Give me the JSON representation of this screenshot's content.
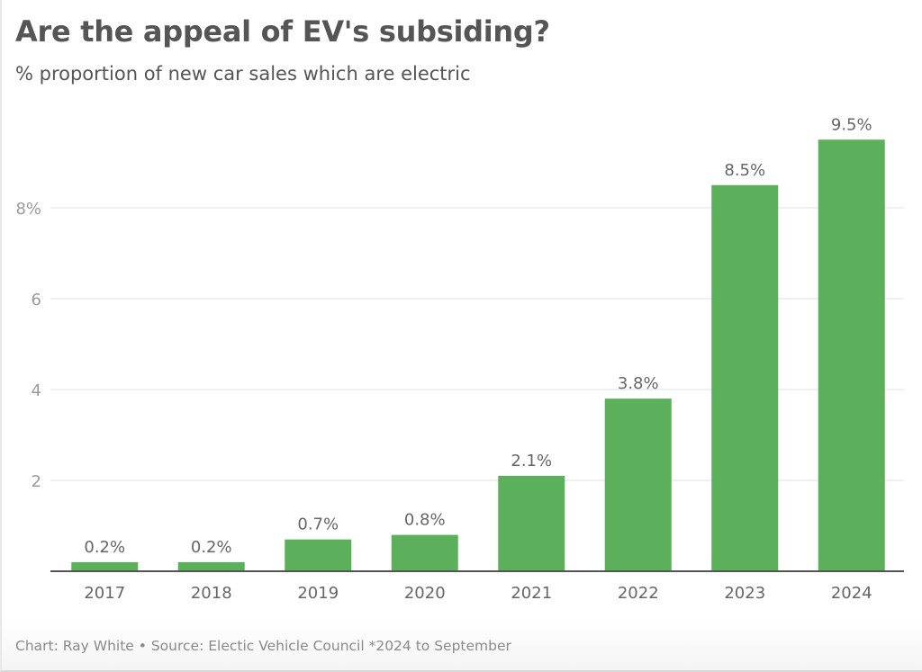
{
  "chart_data": {
    "type": "bar",
    "title": "Are the appeal of EV's subsiding?",
    "subtitle": "% proportion of new car sales which are electric",
    "categories": [
      "2017",
      "2018",
      "2019",
      "2020",
      "2021",
      "2022",
      "2023",
      "2024"
    ],
    "values": [
      0.2,
      0.2,
      0.7,
      0.8,
      2.1,
      3.8,
      8.5,
      9.5
    ],
    "data_labels": [
      "0.2%",
      "0.2%",
      "0.7%",
      "0.8%",
      "2.1%",
      "3.8%",
      "8.5%",
      "9.5%"
    ],
    "xlabel": "",
    "ylabel": "",
    "ylim": [
      0,
      10
    ],
    "yticks": [
      2,
      4,
      6,
      8
    ],
    "ytick_labels": [
      "2",
      "4",
      "6",
      "8%"
    ],
    "grid": true,
    "legend": "none",
    "bar_color": "#5cb05c",
    "footer": "Chart: Ray White • Source: Electic Vehicle Council *2024 to September"
  }
}
